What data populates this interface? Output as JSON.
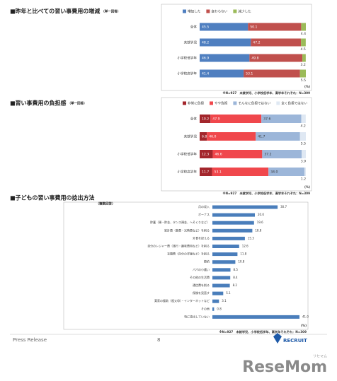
{
  "chart_data": [
    {
      "type": "stacked_bar_h",
      "title": "■昨年と比べての習い事費用の増減",
      "subtitle": "（単一回答）",
      "categories": [
        "全体",
        "未就学児",
        "小学校低学年",
        "小学校高学年"
      ],
      "series": [
        {
          "name": "増加した",
          "color": "#4f7fc0",
          "values": [
            45.5,
            48.2,
            46.9,
            41.4
          ]
        },
        {
          "name": "変わらない",
          "color": "#c0504d",
          "values": [
            50.1,
            47.2,
            49.8,
            53.1
          ]
        },
        {
          "name": "減少した",
          "color": "#9bbb59",
          "values": [
            4.4,
            4.5,
            3.2,
            5.5
          ]
        }
      ],
      "xlim": [
        0,
        100
      ],
      "unit": "(%)",
      "note": "※N=927　未就学児、小学校低学年、高学年それぞれ：N=309"
    },
    {
      "type": "stacked_bar_h",
      "title": "■習い事費用の負担感",
      "subtitle": "（単一回答）",
      "categories": [
        "全体",
        "未就学児",
        "小学校低学年",
        "小学校高学年"
      ],
      "series": [
        {
          "name": "非常に負担",
          "color": "#a3262c",
          "values": [
            10.2,
            6.8,
            12.3,
            11.7
          ]
        },
        {
          "name": "やや負担",
          "color": "#f0474c",
          "values": [
            47.9,
            46.0,
            46.6,
            53.1
          ],
          "value_labels": [
            "47.9",
            "46.0",
            "46.6",
            "53.1"
          ]
        },
        {
          "name": "そんなに負担ではない",
          "color": "#9cb6d9",
          "values": [
            37.6,
            41.7,
            37.2,
            34.0
          ],
          "value_labels": [
            "37.6",
            "41.7",
            "37.2",
            "34.0"
          ]
        },
        {
          "name": "全く負担ではない",
          "color": "#dfe8f3",
          "values": [
            4.2,
            5.5,
            3.9,
            1.2
          ]
        }
      ],
      "xlim": [
        0,
        100
      ],
      "unit": "(%)",
      "note": "※N=927　未就学児、小学校低学年、高学年それぞれ：N=309"
    },
    {
      "type": "bar_h",
      "title": "■子どもの習い事費用の捻出方法",
      "subtitle": "（複数回答）",
      "categories": [
        "月の収入",
        "ボーナス",
        "貯蓄（預・貯金、タンス預金、へそくりなど）",
        "家計費（食費・光熱費など）を削る",
        "外食を控える",
        "自分のレジャー費（旅行・趣味費用など）を削る",
        "衣類費（自分の洋服など）を削る",
        "節約",
        "パパの小遣い",
        "その他の生活費",
        "通信費を削る",
        "保険を見直す",
        "実家の援助（祖父母）・インターネットなど",
        "その他",
        "特に捻出していない"
      ],
      "values": [
        30.7,
        20.0,
        19.6,
        18.8,
        15.3,
        12.6,
        11.8,
        10.8,
        8.5,
        8.4,
        8.2,
        5.1,
        3.1,
        0.8,
        41.0
      ],
      "value_labels": [
        "30.7",
        "20.0",
        "19.6",
        "18.8",
        "15.3",
        "12.6",
        "11.8",
        "10.8",
        "8.5",
        "8.4",
        "8.2",
        "5.1",
        "3.1",
        "0.8",
        "41.0"
      ],
      "color": "#4a7ebb",
      "xlim": [
        0,
        45
      ],
      "unit": "(%)",
      "note": "※N=927　未就学児、小学校低学年、高学年それぞれ：N=309"
    }
  ],
  "footer": {
    "left": "Press Release",
    "page": "8",
    "brand": "RECRUIT",
    "watermark": "ReseMom",
    "watermark_kana": "リセマム"
  }
}
